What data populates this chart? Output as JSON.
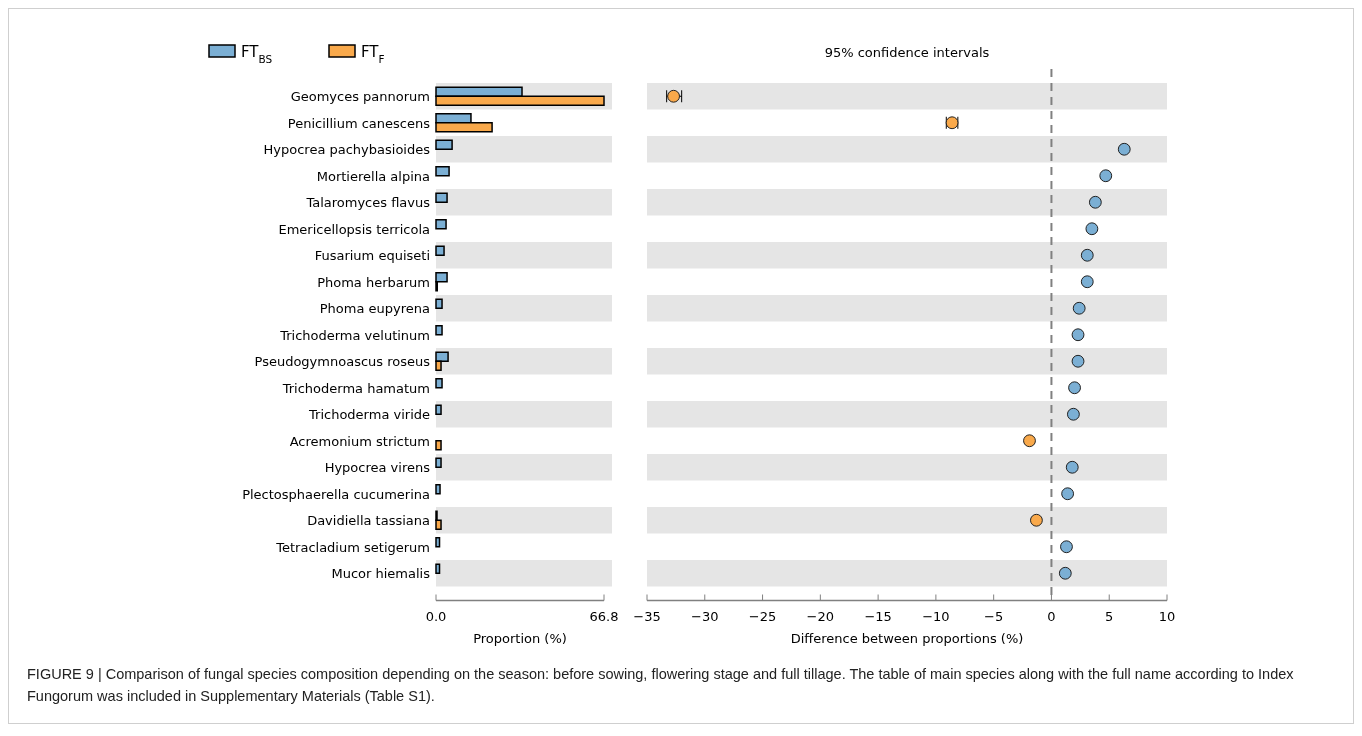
{
  "chart_data": [
    {
      "type": "bar",
      "orientation": "horizontal",
      "xlabel": "Proportion (%)",
      "categories": [
        "Geomyces pannorum",
        "Penicillium canescens",
        "Hypocrea pachybasioides",
        "Mortierella alpina",
        "Talaromyces flavus",
        "Emericellopsis terricola",
        "Fusarium equiseti",
        "Phoma herbarum",
        "Phoma eupyrena",
        "Trichoderma velutinum",
        "Pseudogymnoascus roseus",
        "Trichoderma hamatum",
        "Trichoderma viride",
        "Acremonium strictum",
        "Hypocrea virens",
        "Plectosphaerella cucumerina",
        "Davidiella tassiana",
        "Tetracladium setigerum",
        "Mucor hiemalis"
      ],
      "series": [
        {
          "name": "FT$_{BS}$",
          "color": "#7bafd4",
          "values": [
            34.2,
            13.9,
            6.4,
            5.2,
            4.4,
            4.0,
            3.2,
            4.4,
            2.4,
            2.4,
            4.8,
            2.4,
            2.0,
            0,
            2.0,
            1.6,
            0.4,
            1.4,
            1.4
          ]
        },
        {
          "name": "FT$_{F}$",
          "color": "#f9a94b",
          "values": [
            66.8,
            22.3,
            0,
            0,
            0,
            0,
            0,
            0.5,
            0,
            0,
            2.0,
            0,
            0,
            2.0,
            0,
            0,
            2.0,
            0,
            0
          ]
        }
      ],
      "xlim": [
        0,
        66.8
      ],
      "xticks": [
        {
          "value": 0,
          "label": "0.0"
        },
        66.8
      ],
      "legend": "top left",
      "grid": false,
      "annotations": [
        "FIGURE 9 | Comparison of fungal species composition depending on the season: before sowing, flowering stage and full tillage. The table of main species along with the full name according to Index Fungorum was included in Supplementary Materials (Table S1)."
      ]
    },
    {
      "type": "scatter",
      "orientation": "horizontal",
      "title": "95% confidence intervals",
      "xlabel": "Difference between proportions (%)",
      "categories": [
        "Geomyces pannorum",
        "Penicillium canescens",
        "Hypocrea pachybasioides",
        "Mortierella alpina",
        "Talaromyces flavus",
        "Emericellopsis terricola",
        "Fusarium equiseti",
        "Phoma herbarum",
        "Phoma eupyrena",
        "Trichoderma velutinum",
        "Pseudogymnoascus roseus",
        "Trichoderma hamatum",
        "Trichoderma viride",
        "Acremonium strictum",
        "Hypocrea virens",
        "Plectosphaerella cucumerina",
        "Davidiella tassiana",
        "Tetracladium setigerum",
        "Mucor hiemalis"
      ],
      "series": [
        {
          "values": [
            -32.7,
            -8.6,
            6.3,
            4.7,
            3.8,
            3.5,
            3.1,
            3.1,
            2.4,
            2.3,
            2.3,
            2.0,
            1.9,
            -1.9,
            1.8,
            1.4,
            -1.3,
            1.3,
            1.2
          ],
          "colors": [
            "#f9a94b",
            "#f9a94b",
            "#7bafd4",
            "#7bafd4",
            "#7bafd4",
            "#7bafd4",
            "#7bafd4",
            "#7bafd4",
            "#7bafd4",
            "#7bafd4",
            "#7bafd4",
            "#7bafd4",
            "#7bafd4",
            "#f9a94b",
            "#7bafd4",
            "#7bafd4",
            "#f9a94b",
            "#7bafd4",
            "#7bafd4"
          ],
          "errors": [
            [
              -33.3,
              -32.0
            ],
            [
              -9.1,
              -8.1
            ],
            null,
            null,
            null,
            null,
            null,
            null,
            null,
            null,
            null,
            null,
            null,
            null,
            null,
            null,
            null,
            null,
            null
          ]
        }
      ],
      "xlim": [
        -35,
        10
      ],
      "xticks": [
        -35,
        -30,
        -25,
        -20,
        -15,
        -10,
        -5,
        0,
        5,
        10
      ],
      "tick_labels": "x",
      "marker": "circle",
      "grid": false,
      "ref_lines": [
        {
          "axis": "x",
          "value": 0,
          "color": "#808080",
          "line_style": "dashed"
        }
      ]
    }
  ]
}
